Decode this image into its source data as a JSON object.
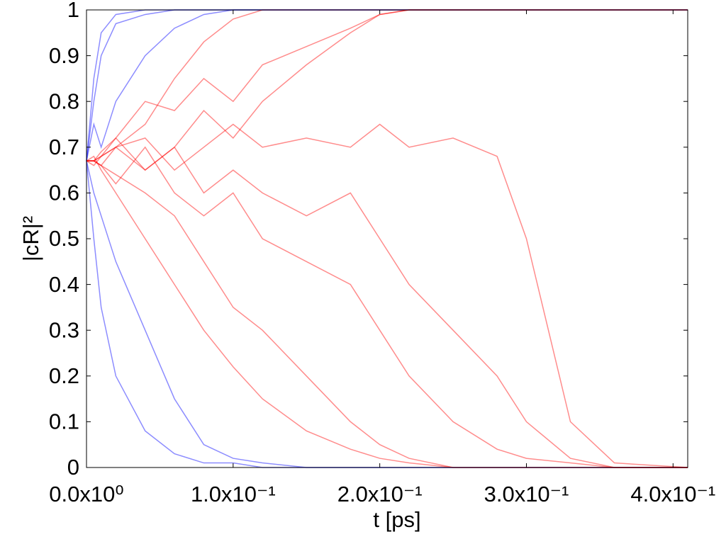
{
  "chart_data": {
    "type": "line",
    "xlabel": "t [ps]",
    "ylabel": "|cR|²",
    "xlim": [
      0,
      0.41
    ],
    "ylim": [
      0,
      1
    ],
    "xticks": [
      {
        "value": 0,
        "label": "0.0x10⁰"
      },
      {
        "value": 0.1,
        "label": "1.0x10⁻¹"
      },
      {
        "value": 0.2,
        "label": "2.0x10⁻¹"
      },
      {
        "value": 0.3,
        "label": "3.0x10⁻¹"
      },
      {
        "value": 0.4,
        "label": "4.0x10⁻¹"
      }
    ],
    "yticks": [
      0,
      0.1,
      0.2,
      0.3,
      0.4,
      0.5,
      0.6,
      0.7,
      0.8,
      0.9,
      1
    ],
    "opacity": 0.45,
    "x": [
      0,
      0.005,
      0.01,
      0.02,
      0.04,
      0.06,
      0.08,
      0.1,
      0.12,
      0.15,
      0.18,
      0.2,
      0.22,
      0.25,
      0.28,
      0.3,
      0.33,
      0.36,
      0.41
    ],
    "series": [
      {
        "color": "#0000ff",
        "values": [
          0.67,
          0.85,
          0.95,
          0.99,
          1,
          1,
          1,
          1,
          1,
          1,
          1,
          1,
          1,
          1,
          1,
          1,
          1,
          1,
          1
        ]
      },
      {
        "color": "#0000ff",
        "values": [
          0.67,
          0.8,
          0.9,
          0.97,
          0.99,
          1,
          1,
          1,
          1,
          1,
          1,
          1,
          1,
          1,
          1,
          1,
          1,
          1,
          1
        ]
      },
      {
        "color": "#0000ff",
        "values": [
          0.67,
          0.5,
          0.35,
          0.2,
          0.08,
          0.03,
          0.01,
          0.01,
          0,
          0,
          0,
          0,
          0,
          0,
          0,
          0,
          0,
          0,
          0
        ]
      },
      {
        "color": "#0000ff",
        "values": [
          0.67,
          0.6,
          0.55,
          0.45,
          0.3,
          0.15,
          0.05,
          0.02,
          0.01,
          0,
          0,
          0,
          0,
          0,
          0,
          0,
          0,
          0,
          0
        ]
      },
      {
        "color": "#0000ff",
        "values": [
          0.67,
          0.75,
          0.7,
          0.8,
          0.9,
          0.96,
          0.99,
          1,
          1,
          1,
          1,
          1,
          1,
          1,
          1,
          1,
          1,
          1,
          1
        ]
      },
      {
        "color": "#ff0000",
        "values": [
          0.67,
          0.66,
          0.68,
          0.7,
          0.75,
          0.85,
          0.93,
          0.98,
          1,
          1,
          1,
          1,
          1,
          1,
          1,
          1,
          1,
          1,
          1
        ]
      },
      {
        "color": "#ff0000",
        "values": [
          0.67,
          0.68,
          0.65,
          0.6,
          0.5,
          0.4,
          0.3,
          0.22,
          0.15,
          0.08,
          0.04,
          0.02,
          0.01,
          0,
          0,
          0,
          0,
          0,
          0
        ]
      },
      {
        "color": "#ff0000",
        "values": [
          0.67,
          0.67,
          0.69,
          0.72,
          0.65,
          0.7,
          0.78,
          0.72,
          0.8,
          0.88,
          0.95,
          0.99,
          1,
          1,
          1,
          1,
          1,
          1,
          1
        ]
      },
      {
        "color": "#ff0000",
        "values": [
          0.67,
          0.67,
          0.66,
          0.62,
          0.7,
          0.6,
          0.55,
          0.6,
          0.5,
          0.45,
          0.4,
          0.3,
          0.2,
          0.1,
          0.04,
          0.02,
          0.01,
          0,
          0
        ]
      },
      {
        "color": "#ff0000",
        "values": [
          0.67,
          0.67,
          0.68,
          0.7,
          0.72,
          0.65,
          0.7,
          0.75,
          0.7,
          0.72,
          0.7,
          0.75,
          0.7,
          0.72,
          0.68,
          0.5,
          0.1,
          0.01,
          0
        ]
      },
      {
        "color": "#ff0000",
        "values": [
          0.67,
          0.67,
          0.66,
          0.64,
          0.6,
          0.55,
          0.45,
          0.35,
          0.3,
          0.2,
          0.1,
          0.05,
          0.02,
          0,
          0,
          0,
          0,
          0,
          0
        ]
      },
      {
        "color": "#ff0000",
        "values": [
          0.67,
          0.67,
          0.68,
          0.72,
          0.8,
          0.78,
          0.85,
          0.8,
          0.88,
          0.92,
          0.96,
          0.99,
          1,
          1,
          1,
          1,
          1,
          1,
          1
        ]
      },
      {
        "color": "#ff0000",
        "values": [
          0.67,
          0.67,
          0.66,
          0.7,
          0.65,
          0.7,
          0.6,
          0.65,
          0.6,
          0.55,
          0.6,
          0.5,
          0.4,
          0.3,
          0.2,
          0.1,
          0.02,
          0,
          0
        ]
      }
    ]
  }
}
